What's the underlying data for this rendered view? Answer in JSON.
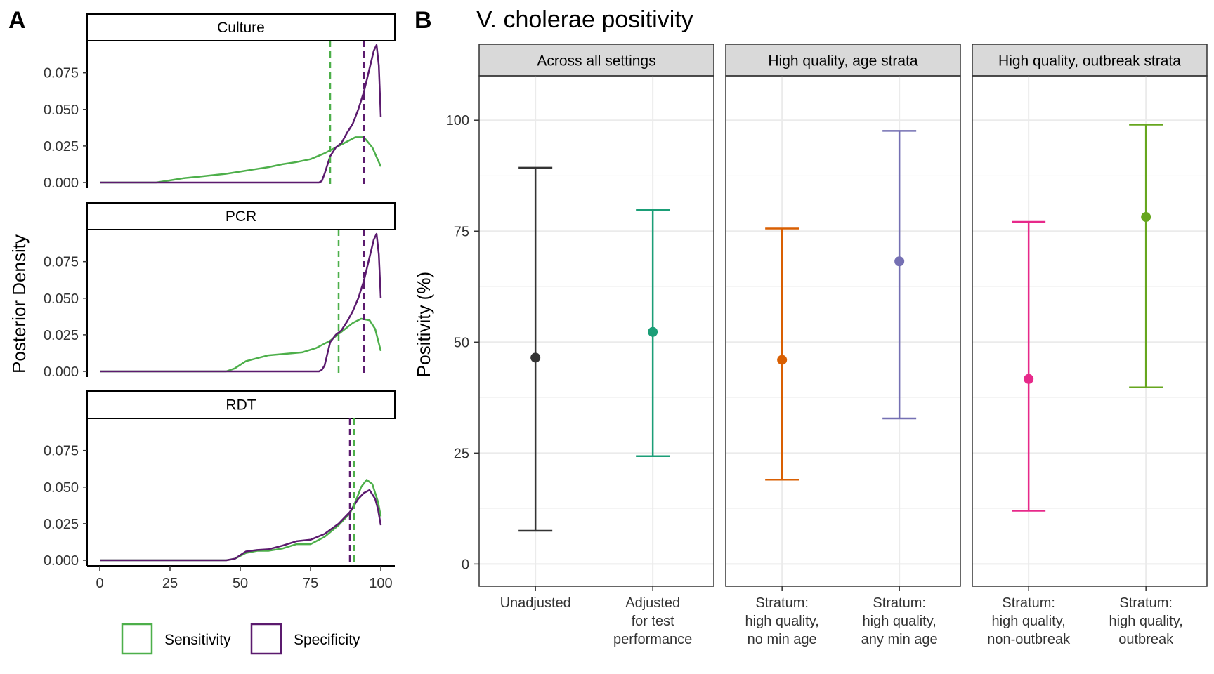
{
  "panel_a": {
    "letter": "A"
  },
  "panel_b": {
    "letter": "B"
  },
  "colors": {
    "sensitivity": "#4DAF4A",
    "specificity": "#5B1A6E",
    "strip_a_fill": "#FFFFFF",
    "strip_b_fill": "#D9D9D9",
    "grid": "#EBEBEB"
  },
  "chart_data": [
    {
      "type": "line",
      "title": "",
      "ylabel": "Posterior Density",
      "xlabel": "",
      "xlim": [
        0,
        100
      ],
      "ylim": [
        0,
        0.095
      ],
      "x_ticks": [
        "0",
        "25",
        "50",
        "75",
        "100"
      ],
      "y_ticks": [
        "0.000",
        "0.025",
        "0.050",
        "0.075"
      ],
      "grid": false,
      "legend": {
        "position": "bottom",
        "entries": [
          {
            "name": "Sensitivity",
            "color": "#4DAF4A"
          },
          {
            "name": "Specificity",
            "color": "#5B1A6E"
          }
        ]
      },
      "facets": [
        {
          "label": "Culture",
          "vlines": {
            "Sensitivity": 82,
            "Specificity": 94
          },
          "series": [
            {
              "name": "Sensitivity",
              "points": [
                [
                  0,
                  0
                ],
                [
                  20,
                  0
                ],
                [
                  25,
                  0.0015
                ],
                [
                  30,
                  0.003
                ],
                [
                  35,
                  0.004
                ],
                [
                  40,
                  0.005
                ],
                [
                  45,
                  0.006
                ],
                [
                  50,
                  0.0075
                ],
                [
                  55,
                  0.009
                ],
                [
                  60,
                  0.0105
                ],
                [
                  65,
                  0.0125
                ],
                [
                  70,
                  0.014
                ],
                [
                  75,
                  0.016
                ],
                [
                  80,
                  0.02
                ],
                [
                  85,
                  0.025
                ],
                [
                  88,
                  0.028
                ],
                [
                  91,
                  0.031
                ],
                [
                  94,
                  0.031
                ],
                [
                  97,
                  0.024
                ],
                [
                  100,
                  0.011
                ]
              ]
            },
            {
              "name": "Specificity",
              "points": [
                [
                  0,
                  0
                ],
                [
                  50,
                  0
                ],
                [
                  78,
                  0
                ],
                [
                  79,
                  0.001
                ],
                [
                  80,
                  0.006
                ],
                [
                  82,
                  0.018
                ],
                [
                  84,
                  0.024
                ],
                [
                  86,
                  0.027
                ],
                [
                  88,
                  0.034
                ],
                [
                  90,
                  0.04
                ],
                [
                  92,
                  0.05
                ],
                [
                  94,
                  0.062
                ],
                [
                  96,
                  0.078
                ],
                [
                  97.5,
                  0.09
                ],
                [
                  98.5,
                  0.094
                ],
                [
                  99.3,
                  0.08
                ],
                [
                  100,
                  0.045
                ]
              ]
            }
          ]
        },
        {
          "label": "PCR",
          "vlines": {
            "Sensitivity": 85,
            "Specificity": 94
          },
          "series": [
            {
              "name": "Sensitivity",
              "points": [
                [
                  0,
                  0
                ],
                [
                  45,
                  0
                ],
                [
                  48,
                  0.002
                ],
                [
                  52,
                  0.007
                ],
                [
                  56,
                  0.009
                ],
                [
                  60,
                  0.011
                ],
                [
                  66,
                  0.012
                ],
                [
                  72,
                  0.013
                ],
                [
                  77,
                  0.016
                ],
                [
                  82,
                  0.021
                ],
                [
                  86,
                  0.027
                ],
                [
                  90,
                  0.033
                ],
                [
                  93,
                  0.036
                ],
                [
                  96,
                  0.035
                ],
                [
                  98,
                  0.029
                ],
                [
                  100,
                  0.014
                ]
              ]
            },
            {
              "name": "Specificity",
              "points": [
                [
                  0,
                  0
                ],
                [
                  50,
                  0
                ],
                [
                  78,
                  0
                ],
                [
                  79,
                  0.001
                ],
                [
                  80,
                  0.004
                ],
                [
                  82,
                  0.02
                ],
                [
                  84,
                  0.025
                ],
                [
                  86,
                  0.028
                ],
                [
                  88,
                  0.034
                ],
                [
                  90,
                  0.041
                ],
                [
                  92,
                  0.05
                ],
                [
                  94,
                  0.062
                ],
                [
                  96,
                  0.078
                ],
                [
                  97.5,
                  0.09
                ],
                [
                  98.5,
                  0.094
                ],
                [
                  99.3,
                  0.08
                ],
                [
                  100,
                  0.05
                ]
              ]
            }
          ]
        },
        {
          "label": "RDT",
          "vlines": {
            "Sensitivity": 90.5,
            "Specificity": 89
          },
          "series": [
            {
              "name": "Sensitivity",
              "points": [
                [
                  0,
                  0
                ],
                [
                  45,
                  0
                ],
                [
                  48,
                  0.001
                ],
                [
                  52,
                  0.005
                ],
                [
                  56,
                  0.0065
                ],
                [
                  60,
                  0.0065
                ],
                [
                  65,
                  0.008
                ],
                [
                  70,
                  0.011
                ],
                [
                  75,
                  0.011
                ],
                [
                  80,
                  0.016
                ],
                [
                  85,
                  0.024
                ],
                [
                  89,
                  0.032
                ],
                [
                  91,
                  0.04
                ],
                [
                  93,
                  0.05
                ],
                [
                  95,
                  0.055
                ],
                [
                  97,
                  0.052
                ],
                [
                  99,
                  0.04
                ],
                [
                  100,
                  0.03
                ]
              ]
            },
            {
              "name": "Specificity",
              "points": [
                [
                  0,
                  0
                ],
                [
                  45,
                  0
                ],
                [
                  48,
                  0.001
                ],
                [
                  52,
                  0.006
                ],
                [
                  56,
                  0.007
                ],
                [
                  60,
                  0.0075
                ],
                [
                  65,
                  0.01
                ],
                [
                  70,
                  0.013
                ],
                [
                  75,
                  0.014
                ],
                [
                  80,
                  0.018
                ],
                [
                  85,
                  0.025
                ],
                [
                  89,
                  0.033
                ],
                [
                  92,
                  0.042
                ],
                [
                  94,
                  0.046
                ],
                [
                  96,
                  0.048
                ],
                [
                  98,
                  0.042
                ],
                [
                  99,
                  0.035
                ],
                [
                  100,
                  0.024
                ]
              ]
            }
          ]
        }
      ]
    },
    {
      "type": "errorbar",
      "title": "V. cholerae positivity",
      "xlabel": "",
      "ylabel": "Positivity (%)",
      "ylim": [
        -5,
        110
      ],
      "y_ticks": [
        0,
        25,
        50,
        75,
        100
      ],
      "grid": true,
      "facets": [
        {
          "label": "Across all settings",
          "points": [
            {
              "category": [
                "Unadjusted"
              ],
              "estimate": 46.5,
              "lower": 7.5,
              "upper": 89.3,
              "color": "#333333"
            },
            {
              "category": [
                "Adjusted",
                "for test",
                "performance"
              ],
              "estimate": 52.3,
              "lower": 24.3,
              "upper": 79.8,
              "color": "#1B9E77"
            }
          ]
        },
        {
          "label": "High quality, age strata",
          "points": [
            {
              "category": [
                "Stratum:",
                "high quality,",
                "no min age"
              ],
              "estimate": 46.0,
              "lower": 19.0,
              "upper": 75.6,
              "color": "#D95F02"
            },
            {
              "category": [
                "Stratum:",
                "high quality,",
                "any min age"
              ],
              "estimate": 68.2,
              "lower": 32.8,
              "upper": 97.6,
              "color": "#7570B3"
            }
          ]
        },
        {
          "label": "High quality, outbreak strata",
          "points": [
            {
              "category": [
                "Stratum:",
                "high quality,",
                "non-outbreak"
              ],
              "estimate": 41.7,
              "lower": 12.0,
              "upper": 77.1,
              "color": "#E7298A"
            },
            {
              "category": [
                "Stratum:",
                "high quality,",
                "outbreak"
              ],
              "estimate": 78.2,
              "lower": 39.8,
              "upper": 99.0,
              "color": "#66A61E"
            }
          ]
        }
      ]
    }
  ]
}
